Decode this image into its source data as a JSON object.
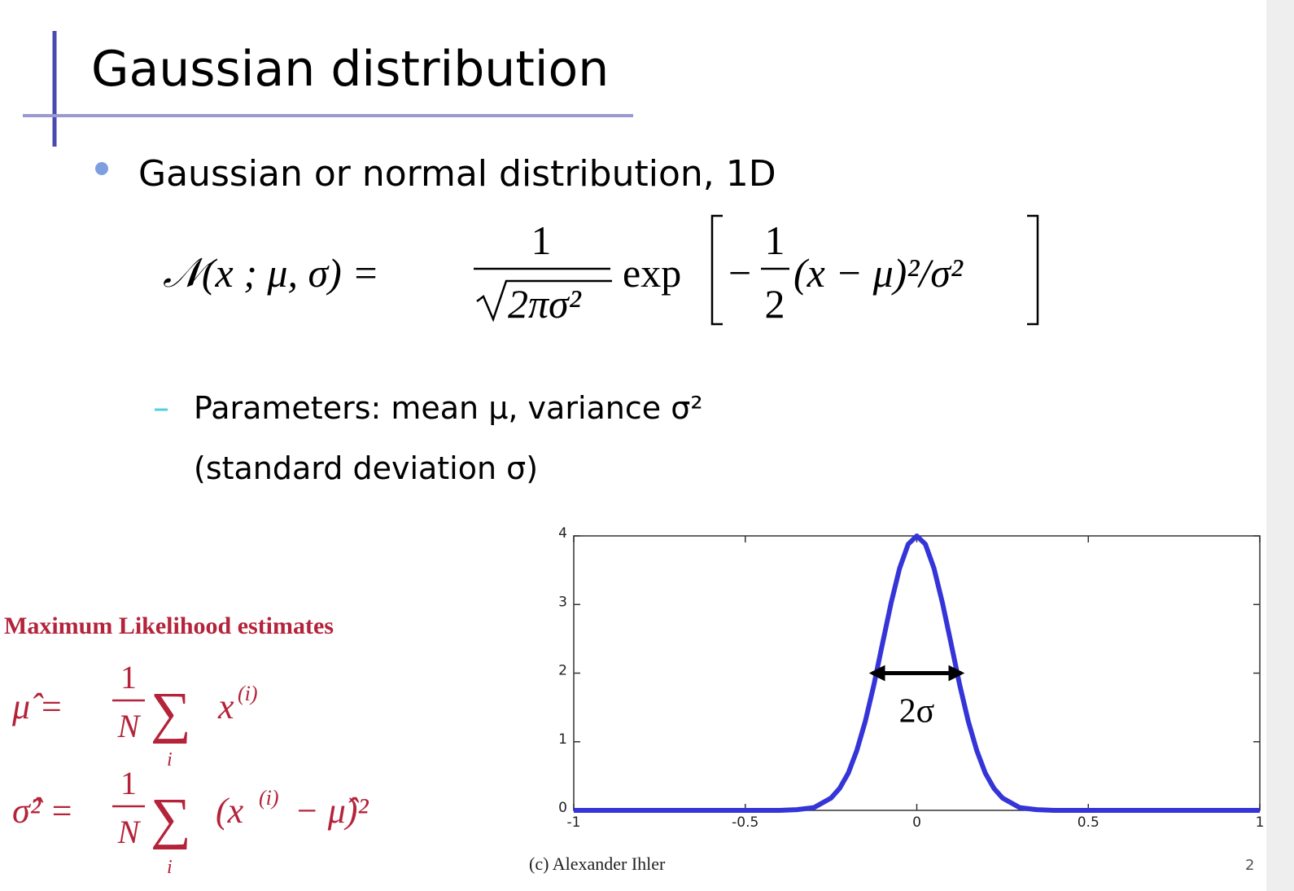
{
  "title": "Gaussian distribution",
  "bullet": "Gaussian or normal distribution, 1D",
  "formula": {
    "lhs": "𝒩(x ; μ, σ) =",
    "coef_num": "1",
    "coef_den": "2πσ²",
    "exp": "exp",
    "minus": "−",
    "half_num": "1",
    "half_den": "2",
    "rest": "(x − μ)²/σ²"
  },
  "sub_bullet": [
    "Parameters: mean μ, variance σ²",
    "(standard deviation σ)"
  ],
  "ml": {
    "heading": "Maximum Likelihood estimates",
    "mean": {
      "lhs": "μ̂ =",
      "num": "1",
      "den": "N",
      "sum": "∑",
      "index": "i",
      "term": "x",
      "sup": "(i)"
    },
    "variance": {
      "lhs": "σ̂² =",
      "num": "1",
      "den": "N",
      "sum": "∑",
      "index": "i",
      "term_open": "(x",
      "sup": "(i)",
      "term_close": "− μ̂)²"
    }
  },
  "footer": {
    "credit": "(c) Alexander Ihler",
    "page": "2"
  },
  "chart_data": {
    "type": "line",
    "x": [
      -1,
      -0.5,
      -0.4,
      -0.35,
      -0.3,
      -0.25,
      -0.225,
      -0.2,
      -0.175,
      -0.15,
      -0.125,
      -0.1,
      -0.075,
      -0.05,
      -0.025,
      0,
      0.025,
      0.05,
      0.075,
      0.1,
      0.125,
      0.15,
      0.175,
      0.2,
      0.225,
      0.25,
      0.3,
      0.35,
      0.4,
      0.5,
      1
    ],
    "values": [
      0,
      0,
      0,
      0.01,
      0.04,
      0.18,
      0.32,
      0.54,
      0.87,
      1.3,
      1.83,
      2.43,
      3.02,
      3.53,
      3.88,
      4,
      3.88,
      3.53,
      3.02,
      2.43,
      1.83,
      1.3,
      0.87,
      0.54,
      0.32,
      0.18,
      0.04,
      0.01,
      0,
      0,
      0
    ],
    "color": "#3434d8",
    "xlim": [
      -1,
      1
    ],
    "ylim": [
      0,
      4
    ],
    "xticks": [
      -1,
      -0.5,
      0,
      0.5,
      1
    ],
    "yticks": [
      0,
      1,
      2,
      3,
      4
    ],
    "annotation": {
      "text": "2σ",
      "x": [
        -0.13,
        0.13
      ],
      "y": 2
    }
  }
}
